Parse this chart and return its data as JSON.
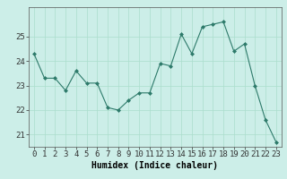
{
  "x": [
    0,
    1,
    2,
    3,
    4,
    5,
    6,
    7,
    8,
    9,
    10,
    11,
    12,
    13,
    14,
    15,
    16,
    17,
    18,
    19,
    20,
    21,
    22,
    23
  ],
  "y": [
    24.3,
    23.3,
    23.3,
    22.8,
    23.6,
    23.1,
    23.1,
    22.1,
    22.0,
    22.4,
    22.7,
    22.7,
    23.9,
    23.8,
    25.1,
    24.3,
    25.4,
    25.5,
    25.6,
    24.4,
    24.7,
    23.0,
    21.6,
    20.7
  ],
  "xlabel": "Humidex (Indice chaleur)",
  "ylim": [
    20.5,
    26.2
  ],
  "xlim": [
    -0.5,
    23.5
  ],
  "line_color": "#2d7a6a",
  "marker_color": "#2d7a6a",
  "bg_color": "#cceee8",
  "grid_color": "#aaddcc",
  "tick_labels": [
    "0",
    "1",
    "2",
    "3",
    "4",
    "5",
    "6",
    "7",
    "8",
    "9",
    "10",
    "11",
    "12",
    "13",
    "14",
    "15",
    "16",
    "17",
    "18",
    "19",
    "20",
    "21",
    "22",
    "23"
  ],
  "yticks": [
    21,
    22,
    23,
    24,
    25
  ],
  "xlabel_fontsize": 7,
  "tick_fontsize": 6.5
}
